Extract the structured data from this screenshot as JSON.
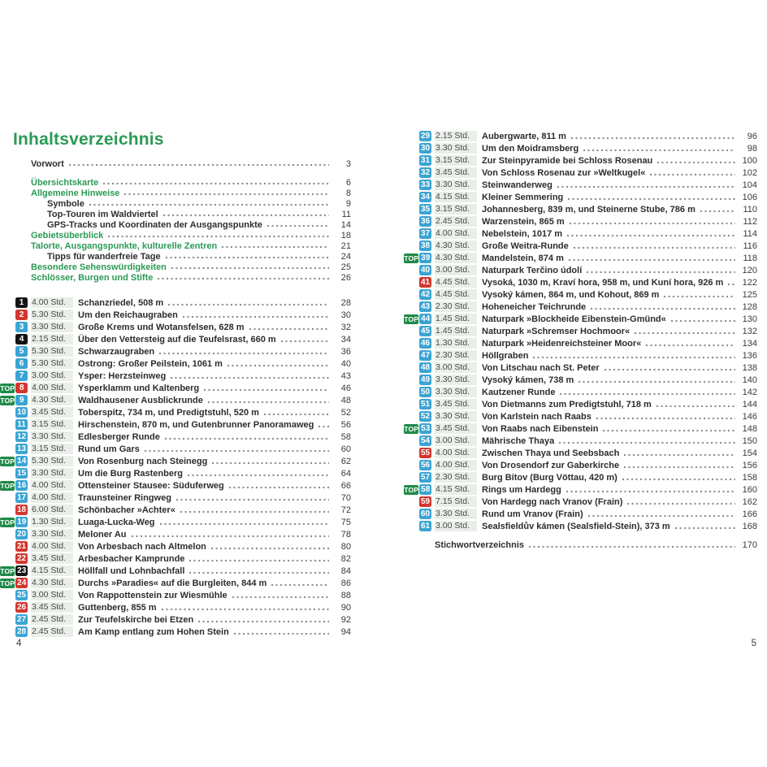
{
  "header": {
    "title": "Inhaltsverzeichnis"
  },
  "footer": {
    "left_page_number": "4",
    "right_page_number": "5"
  },
  "colors": {
    "heading_green": "#2a9a55",
    "top_badge_green": "#1f8a47",
    "tour_blue": "#3ba4d4",
    "tour_red": "#d4362e",
    "tour_black": "#141414",
    "time_strip": "#e9efe8"
  },
  "badges": {
    "top_label": "TOP",
    "time_suffix": "Std."
  },
  "front_matter": [
    {
      "label": "Vorwort",
      "page": "3",
      "color": "black",
      "indent": 0,
      "gap_after": true
    },
    {
      "label": "Übersichtskarte",
      "page": "6",
      "color": "green",
      "indent": 0,
      "gap_after": false
    },
    {
      "label": "Allgemeine Hinweise",
      "page": "8",
      "color": "green",
      "indent": 0,
      "gap_after": false
    },
    {
      "label": "Symbole",
      "page": "9",
      "color": "black",
      "indent": 1,
      "gap_after": false
    },
    {
      "label": "Top-Touren im Waldviertel",
      "page": "11",
      "color": "black",
      "indent": 1,
      "gap_after": false
    },
    {
      "label": "GPS-Tracks und Koordinaten der Ausgangspunkte",
      "page": "14",
      "color": "black",
      "indent": 1,
      "gap_after": false
    },
    {
      "label": "Gebietsüberblick",
      "page": "18",
      "color": "green",
      "indent": 0,
      "gap_after": false
    },
    {
      "label": "Talorte, Ausgangspunkte, kulturelle Zentren",
      "page": "21",
      "color": "green",
      "indent": 0,
      "gap_after": false
    },
    {
      "label": "Tipps für wanderfreie Tage",
      "page": "24",
      "color": "black",
      "indent": 1,
      "gap_after": false
    },
    {
      "label": "Besondere Sehenswürdigkeiten",
      "page": "25",
      "color": "green",
      "indent": 0,
      "gap_after": false
    },
    {
      "label": "Schlösser, Burgen und Stifte",
      "page": "26",
      "color": "green",
      "indent": 0,
      "gap_after": false
    }
  ],
  "tours_left": [
    {
      "num": "1",
      "difficulty": "black",
      "top": false,
      "time": "4.00 Std.",
      "title": "Schanzriedel, 508 m",
      "page": "28"
    },
    {
      "num": "2",
      "difficulty": "red",
      "top": false,
      "time": "5.30 Std.",
      "title": "Um den Reichaugraben",
      "page": "30"
    },
    {
      "num": "3",
      "difficulty": "blue",
      "top": false,
      "time": "3.30 Std.",
      "title": "Große Krems und Wotansfelsen, 628 m",
      "page": "32"
    },
    {
      "num": "4",
      "difficulty": "black",
      "top": false,
      "time": "2.15 Std.",
      "title": "Über den Vettersteig auf die Teufelsrast, 660 m",
      "page": "34"
    },
    {
      "num": "5",
      "difficulty": "blue",
      "top": false,
      "time": "5.30 Std.",
      "title": "Schwarzaugraben",
      "page": "36"
    },
    {
      "num": "6",
      "difficulty": "blue",
      "top": false,
      "time": "5.30 Std.",
      "title": "Ostrong: Großer Peilstein, 1061 m",
      "page": "40"
    },
    {
      "num": "7",
      "difficulty": "blue",
      "top": false,
      "time": "3.00 Std.",
      "title": "Ysper: Herzsteinweg",
      "page": "43"
    },
    {
      "num": "8",
      "difficulty": "red",
      "top": true,
      "time": "4.00 Std.",
      "title": "Ysperklamm und Kaltenberg",
      "page": "46"
    },
    {
      "num": "9",
      "difficulty": "blue",
      "top": true,
      "time": "4.30 Std.",
      "title": "Waldhausener Ausblickrunde",
      "page": "48"
    },
    {
      "num": "10",
      "difficulty": "blue",
      "top": false,
      "time": "3.45 Std.",
      "title": "Toberspitz, 734 m, und Predigtstuhl, 520 m",
      "page": "52"
    },
    {
      "num": "11",
      "difficulty": "blue",
      "top": false,
      "time": "3.15 Std.",
      "title": "Hirschenstein, 870 m, und Gutenbrunner Panoramaweg",
      "page": "56"
    },
    {
      "num": "12",
      "difficulty": "blue",
      "top": false,
      "time": "3.30 Std.",
      "title": "Edlesberger Runde",
      "page": "58"
    },
    {
      "num": "13",
      "difficulty": "blue",
      "top": false,
      "time": "3.15 Std.",
      "title": "Rund um Gars",
      "page": "60"
    },
    {
      "num": "14",
      "difficulty": "blue",
      "top": true,
      "time": "5.30 Std.",
      "title": "Von Rosenburg nach Steinegg",
      "page": "62"
    },
    {
      "num": "15",
      "difficulty": "blue",
      "top": false,
      "time": "3.30 Std.",
      "title": "Um die Burg Rastenberg",
      "page": "64"
    },
    {
      "num": "16",
      "difficulty": "blue",
      "top": true,
      "time": "4.00 Std.",
      "title": "Ottensteiner Stausee: Süduferweg",
      "page": "66"
    },
    {
      "num": "17",
      "difficulty": "blue",
      "top": false,
      "time": "4.00 Std.",
      "title": "Traunsteiner Ringweg",
      "page": "70"
    },
    {
      "num": "18",
      "difficulty": "red",
      "top": false,
      "time": "6.00 Std.",
      "title": "Schönbacher »Achter«",
      "page": "72"
    },
    {
      "num": "19",
      "difficulty": "blue",
      "top": true,
      "time": "1.30 Std.",
      "title": "Luaga-Lucka-Weg",
      "page": "75"
    },
    {
      "num": "20",
      "difficulty": "blue",
      "top": false,
      "time": "3.30 Std.",
      "title": "Meloner Au",
      "page": "78"
    },
    {
      "num": "21",
      "difficulty": "red",
      "top": false,
      "time": "4.00 Std.",
      "title": "Von Arbesbach nach Altmelon",
      "page": "80"
    },
    {
      "num": "22",
      "difficulty": "red",
      "top": false,
      "time": "3.45 Std.",
      "title": "Arbesbacher Kamprunde",
      "page": "82"
    },
    {
      "num": "23",
      "difficulty": "black",
      "top": true,
      "time": "4.15 Std.",
      "title": "Höllfall und Lohnbachfall",
      "page": "84"
    },
    {
      "num": "24",
      "difficulty": "red",
      "top": true,
      "time": "4.30 Std.",
      "title": "Durchs »Paradies« auf die Burgleiten, 844 m",
      "page": "86"
    },
    {
      "num": "25",
      "difficulty": "blue",
      "top": false,
      "time": "3.00 Std.",
      "title": "Von Rappottenstein zur Wiesmühle",
      "page": "88"
    },
    {
      "num": "26",
      "difficulty": "red",
      "top": false,
      "time": "3.45 Std.",
      "title": "Guttenberg, 855 m",
      "page": "90"
    },
    {
      "num": "27",
      "difficulty": "blue",
      "top": false,
      "time": "2.45 Std.",
      "title": "Zur Teufelskirche bei Etzen",
      "page": "92"
    },
    {
      "num": "28",
      "difficulty": "blue",
      "top": false,
      "time": "2.45 Std.",
      "title": "Am Kamp entlang zum Hohen Stein",
      "page": "94"
    }
  ],
  "tours_right": [
    {
      "num": "29",
      "difficulty": "blue",
      "top": false,
      "time": "2.15 Std.",
      "title": "Aubergwarte, 811 m",
      "page": "96"
    },
    {
      "num": "30",
      "difficulty": "blue",
      "top": false,
      "time": "3.30 Std.",
      "title": "Um den Moidramsberg",
      "page": "98"
    },
    {
      "num": "31",
      "difficulty": "blue",
      "top": false,
      "time": "3.15 Std.",
      "title": "Zur Steinpyramide bei Schloss Rosenau",
      "page": "100"
    },
    {
      "num": "32",
      "difficulty": "blue",
      "top": false,
      "time": "3.45 Std.",
      "title": "Von Schloss Rosenau zur »Weltkugel«",
      "page": "102"
    },
    {
      "num": "33",
      "difficulty": "blue",
      "top": false,
      "time": "3.30 Std.",
      "title": "Steinwanderweg",
      "page": "104"
    },
    {
      "num": "34",
      "difficulty": "blue",
      "top": false,
      "time": "4.15 Std.",
      "title": "Kleiner Semmering",
      "page": "106"
    },
    {
      "num": "35",
      "difficulty": "blue",
      "top": false,
      "time": "3.15 Std.",
      "title": "Johannesberg, 839 m, und Steinerne Stube, 786 m",
      "page": "110"
    },
    {
      "num": "36",
      "difficulty": "blue",
      "top": false,
      "time": "2.45 Std.",
      "title": "Warzenstein, 865 m",
      "page": "112"
    },
    {
      "num": "37",
      "difficulty": "blue",
      "top": false,
      "time": "4.00 Std.",
      "title": "Nebelstein, 1017 m",
      "page": "114"
    },
    {
      "num": "38",
      "difficulty": "blue",
      "top": false,
      "time": "4.30 Std.",
      "title": "Große Weitra-Runde",
      "page": "116"
    },
    {
      "num": "39",
      "difficulty": "blue",
      "top": true,
      "time": "4.30 Std.",
      "title": "Mandelstein, 874 m",
      "page": "118"
    },
    {
      "num": "40",
      "difficulty": "blue",
      "top": false,
      "time": "3.00 Std.",
      "title": "Naturpark Terčino údolí",
      "page": "120"
    },
    {
      "num": "41",
      "difficulty": "red",
      "top": false,
      "time": "4.45 Std.",
      "title": "Vysoká, 1030 m, Kraví hora, 958 m, und Kuní hora, 926 m",
      "page": "122"
    },
    {
      "num": "42",
      "difficulty": "blue",
      "top": false,
      "time": "4.45 Std.",
      "title": "Vysoký kámen, 864 m, und Kohout, 869 m",
      "page": "125"
    },
    {
      "num": "43",
      "difficulty": "blue",
      "top": false,
      "time": "2.30 Std.",
      "title": "Hoheneicher Teichrunde",
      "page": "128"
    },
    {
      "num": "44",
      "difficulty": "blue",
      "top": true,
      "time": "1.45 Std.",
      "title": "Naturpark »Blockheide Eibenstein-Gmünd«",
      "page": "130"
    },
    {
      "num": "45",
      "difficulty": "blue",
      "top": false,
      "time": "1.45 Std.",
      "title": "Naturpark »Schremser Hochmoor«",
      "page": "132"
    },
    {
      "num": "46",
      "difficulty": "blue",
      "top": false,
      "time": "1.30 Std.",
      "title": "Naturpark »Heidenreichsteiner Moor«",
      "page": "134"
    },
    {
      "num": "47",
      "difficulty": "blue",
      "top": false,
      "time": "2.30 Std.",
      "title": "Höllgraben",
      "page": "136"
    },
    {
      "num": "48",
      "difficulty": "blue",
      "top": false,
      "time": "3.00 Std.",
      "title": "Von Litschau nach St. Peter",
      "page": "138"
    },
    {
      "num": "49",
      "difficulty": "blue",
      "top": false,
      "time": "3.30 Std.",
      "title": "Vysoký kámen, 738 m",
      "page": "140"
    },
    {
      "num": "50",
      "difficulty": "blue",
      "top": false,
      "time": "3.30 Std.",
      "title": "Kautzener Runde",
      "page": "142"
    },
    {
      "num": "51",
      "difficulty": "blue",
      "top": false,
      "time": "3.45 Std.",
      "title": "Von Dietmanns zum Predigtstuhl, 718 m",
      "page": "144"
    },
    {
      "num": "52",
      "difficulty": "blue",
      "top": false,
      "time": "3.30 Std.",
      "title": "Von Karlstein nach Raabs",
      "page": "146"
    },
    {
      "num": "53",
      "difficulty": "blue",
      "top": true,
      "time": "3.45 Std.",
      "title": "Von Raabs nach Eibenstein",
      "page": "148"
    },
    {
      "num": "54",
      "difficulty": "blue",
      "top": false,
      "time": "3.00 Std.",
      "title": "Mährische Thaya",
      "page": "150"
    },
    {
      "num": "55",
      "difficulty": "red",
      "top": false,
      "time": "4.00 Std.",
      "title": "Zwischen Thaya und Seebsbach",
      "page": "154"
    },
    {
      "num": "56",
      "difficulty": "blue",
      "top": false,
      "time": "4.00 Std.",
      "title": "Von Drosendorf zur Gaberkirche",
      "page": "156"
    },
    {
      "num": "57",
      "difficulty": "blue",
      "top": false,
      "time": "2.30 Std.",
      "title": "Burg Bítov (Burg Vöttau, 420 m)",
      "page": "158"
    },
    {
      "num": "58",
      "difficulty": "blue",
      "top": true,
      "time": "4.15 Std.",
      "title": "Rings um Hardegg",
      "page": "160"
    },
    {
      "num": "59",
      "difficulty": "red",
      "top": false,
      "time": "7.15 Std.",
      "title": "Von Hardegg nach Vranov (Frain)",
      "page": "162"
    },
    {
      "num": "60",
      "difficulty": "blue",
      "top": false,
      "time": "3.30 Std.",
      "title": "Rund um Vranov (Frain)",
      "page": "166"
    },
    {
      "num": "61",
      "difficulty": "blue",
      "top": false,
      "time": "3.00 Std.",
      "title": "Sealsfieldův kámen (Sealsfield-Stein), 373 m",
      "page": "168"
    }
  ],
  "index_entry": {
    "label": "Stichwortverzeichnis",
    "page": "170"
  }
}
